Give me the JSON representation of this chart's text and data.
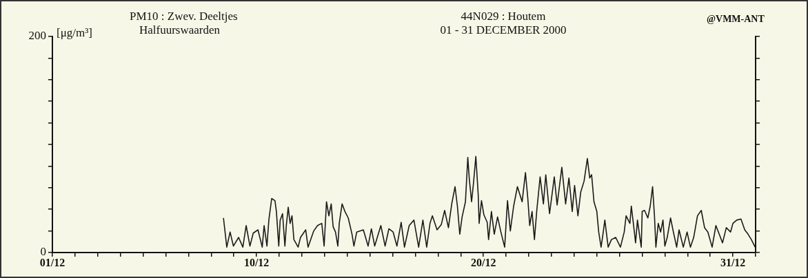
{
  "chart_data": {
    "type": "line",
    "title": "PM10 : Zwev. Deeltjes",
    "subtitle": "Halfuurswaarden",
    "ylabel": "[μg/m³]",
    "annotations": [
      "44N029 : Houtem",
      "01 - 31 DECEMBER 2000",
      "@VMM-ANT"
    ],
    "color": "#1a1a1a",
    "x": [
      "2000-12-08T13:00",
      "2000-12-08T16:30",
      "2000-12-08T20:00",
      "2000-12-08T23:30",
      "2000-12-09T05:00",
      "2000-12-09T09:30",
      "2000-12-09T13:00",
      "2000-12-09T17:00",
      "2000-12-09T20:30",
      "2000-12-10T01:30",
      "2000-12-10T06:00",
      "2000-12-10T08:00",
      "2000-12-10T11:00",
      "2000-12-10T13:00",
      "2000-12-10T16:00",
      "2000-12-10T19:30",
      "2000-12-10T21:00",
      "2000-12-10T23:30",
      "2000-12-11T01:00",
      "2000-12-11T03:30",
      "2000-12-11T06:00",
      "2000-12-11T07:30",
      "2000-12-11T09:30",
      "2000-12-11T11:30",
      "2000-12-11T13:30",
      "2000-12-11T15:30",
      "2000-12-11T20:00",
      "2000-12-11T22:30",
      "2000-12-12T04:00",
      "2000-12-12T06:30",
      "2000-12-12T12:30",
      "2000-12-12T16:30",
      "2000-12-12T21:00",
      "2000-12-12T23:30",
      "2000-12-13T02:00",
      "2000-12-13T04:30",
      "2000-12-13T07:00",
      "2000-12-13T09:00",
      "2000-12-13T11:30",
      "2000-12-13T14:00",
      "2000-12-13T15:30",
      "2000-12-13T18:30",
      "2000-12-13T21:30",
      "2000-12-14T01:00",
      "2000-12-14T05:00",
      "2000-12-14T07:00",
      "2000-12-14T10:00",
      "2000-12-14T17:00",
      "2000-12-14T22:00",
      "2000-12-15T01:30",
      "2000-12-15T05:00",
      "2000-12-15T11:30",
      "2000-12-15T16:00",
      "2000-12-15T20:00",
      "2000-12-16T00:30",
      "2000-12-16T04:30",
      "2000-12-16T09:00",
      "2000-12-16T12:30",
      "2000-12-16T17:30",
      "2000-12-16T22:30",
      "2000-12-17T03:30",
      "2000-12-17T08:00",
      "2000-12-17T12:00",
      "2000-12-17T15:30",
      "2000-12-17T18:00",
      "2000-12-17T23:00",
      "2000-12-18T03:30",
      "2000-12-18T07:00",
      "2000-12-18T11:00",
      "2000-12-18T14:30",
      "2000-12-18T18:00",
      "2000-12-18T20:30",
      "2000-12-18T23:00",
      "2000-12-19T01:30",
      "2000-12-19T05:00",
      "2000-12-19T07:30",
      "2000-12-19T09:00",
      "2000-12-19T11:30",
      "2000-12-19T13:30",
      "2000-12-19T16:00",
      "2000-12-19T18:30",
      "2000-12-19T19:30",
      "2000-12-19T22:00",
      "2000-12-20T00:30",
      "2000-12-20T04:00",
      "2000-12-20T05:30",
      "2000-12-20T08:30",
      "2000-12-20T11:30",
      "2000-12-20T15:00",
      "2000-12-20T18:30",
      "2000-12-20T22:30",
      "2000-12-21T01:30",
      "2000-12-21T04:30",
      "2000-12-21T08:00",
      "2000-12-21T12:00",
      "2000-12-21T17:00",
      "2000-12-21T20:30",
      "2000-12-21T23:00",
      "2000-12-22T01:00",
      "2000-12-22T03:30",
      "2000-12-22T06:00",
      "2000-12-22T08:30",
      "2000-12-22T12:00",
      "2000-12-22T15:30",
      "2000-12-22T18:00",
      "2000-12-22T22:00",
      "2000-12-23T03:00",
      "2000-12-23T06:00",
      "2000-12-23T11:00",
      "2000-12-23T15:00",
      "2000-12-23T18:30",
      "2000-12-23T22:00",
      "2000-12-24T00:30",
      "2000-12-24T04:00",
      "2000-12-24T07:00",
      "2000-12-24T10:30",
      "2000-12-24T14:00",
      "2000-12-24T16:30",
      "2000-12-24T18:30",
      "2000-12-24T21:00",
      "2000-12-25T00:00",
      "2000-12-25T02:00",
      "2000-12-25T04:30",
      "2000-12-25T06:30",
      "2000-12-25T08:30",
      "2000-12-25T12:00",
      "2000-12-25T15:30",
      "2000-12-25T20:00",
      "2000-12-26T01:00",
      "2000-12-26T05:00",
      "2000-12-26T07:00",
      "2000-12-26T11:00",
      "2000-12-26T12:30",
      "2000-12-26T16:00",
      "2000-12-26T17:00",
      "2000-12-26T19:00",
      "2000-12-26T23:00",
      "2000-12-27T00:00",
      "2000-12-27T02:30",
      "2000-12-27T06:00",
      "2000-12-27T08:30",
      "2000-12-27T11:00",
      "2000-12-27T13:00",
      "2000-12-27T14:30",
      "2000-12-27T17:00",
      "2000-12-27T19:30",
      "2000-12-27T22:00",
      "2000-12-28T00:00",
      "2000-12-28T02:30",
      "2000-12-28T06:00",
      "2000-12-28T09:00",
      "2000-12-28T12:30",
      "2000-12-28T15:00",
      "2000-12-28T19:30",
      "2000-12-28T23:30",
      "2000-12-29T03:00",
      "2000-12-29T06:30",
      "2000-12-29T10:30",
      "2000-12-29T14:30",
      "2000-12-29T18:00",
      "2000-12-29T21:30",
      "2000-12-30T02:00",
      "2000-12-30T06:00",
      "2000-12-30T09:30",
      "2000-12-30T13:00",
      "2000-12-30T17:00",
      "2000-12-30T21:30",
      "2000-12-31T00:00",
      "2000-12-31T04:00",
      "2000-12-31T08:30",
      "2000-12-31T12:30",
      "2000-12-31T16:00",
      "2000-12-31T19:30",
      "2000-12-31T23:30"
    ],
    "values": [
      32,
      5,
      19,
      6,
      14,
      5,
      25,
      6,
      18,
      21,
      5,
      25,
      6,
      30,
      50,
      48,
      38,
      6,
      30,
      36,
      6,
      25,
      42,
      27,
      34,
      12,
      5,
      14,
      21,
      5,
      20,
      25,
      27,
      6,
      47,
      34,
      45,
      24,
      19,
      6,
      27,
      45,
      38,
      32,
      17,
      6,
      19,
      21,
      6,
      22,
      6,
      25,
      6,
      22,
      19,
      6,
      28,
      5,
      25,
      30,
      5,
      30,
      5,
      27,
      34,
      21,
      26,
      39,
      23,
      45,
      61,
      43,
      17,
      33,
      47,
      88,
      69,
      47,
      64,
      89,
      54,
      27,
      48,
      35,
      28,
      12,
      38,
      17,
      33,
      19,
      5,
      48,
      20,
      43,
      61,
      47,
      74,
      50,
      25,
      38,
      12,
      39,
      70,
      45,
      72,
      36,
      70,
      44,
      79,
      45,
      69,
      38,
      62,
      34,
      56,
      66,
      87,
      69,
      72,
      47,
      38,
      19,
      5,
      17,
      30,
      5,
      12,
      14,
      5,
      19,
      34,
      27,
      43,
      17,
      9,
      30,
      5,
      38,
      39,
      32,
      43,
      61,
      34,
      5,
      27,
      19,
      30,
      6,
      14,
      32,
      19,
      5,
      21,
      5,
      19,
      5,
      14,
      34,
      39,
      23,
      19,
      5,
      25,
      17,
      9,
      23,
      19,
      27,
      30,
      31,
      21,
      17,
      12,
      5
    ],
    "xlim": [
      "2000-12-01",
      "2001-01-01"
    ],
    "xticks": [
      {
        "value": "2000-12-01",
        "label": "01/12"
      },
      {
        "value": "2000-12-02",
        "label": null
      },
      {
        "value": "2000-12-03",
        "label": null
      },
      {
        "value": "2000-12-04",
        "label": null
      },
      {
        "value": "2000-12-05",
        "label": null
      },
      {
        "value": "2000-12-06",
        "label": null
      },
      {
        "value": "2000-12-07",
        "label": null
      },
      {
        "value": "2000-12-08",
        "label": null
      },
      {
        "value": "2000-12-09",
        "label": null
      },
      {
        "value": "2000-12-10",
        "label": "10/12"
      },
      {
        "value": "2000-12-11",
        "label": null
      },
      {
        "value": "2000-12-12",
        "label": null
      },
      {
        "value": "2000-12-13",
        "label": null
      },
      {
        "value": "2000-12-14",
        "label": null
      },
      {
        "value": "2000-12-15",
        "label": null
      },
      {
        "value": "2000-12-16",
        "label": null
      },
      {
        "value": "2000-12-17",
        "label": null
      },
      {
        "value": "2000-12-18",
        "label": null
      },
      {
        "value": "2000-12-19",
        "label": null
      },
      {
        "value": "2000-12-20",
        "label": "20/12"
      },
      {
        "value": "2000-12-21",
        "label": null
      },
      {
        "value": "2000-12-22",
        "label": null
      },
      {
        "value": "2000-12-23",
        "label": null
      },
      {
        "value": "2000-12-24",
        "label": null
      },
      {
        "value": "2000-12-25",
        "label": null
      },
      {
        "value": "2000-12-26",
        "label": null
      },
      {
        "value": "2000-12-27",
        "label": null
      },
      {
        "value": "2000-12-28",
        "label": null
      },
      {
        "value": "2000-12-29",
        "label": null
      },
      {
        "value": "2000-12-30",
        "label": null
      },
      {
        "value": "2000-12-31",
        "label": "31/12"
      },
      {
        "value": "2001-01-01",
        "label": null
      }
    ],
    "ylim": [
      0,
      200
    ],
    "yticks": [
      0,
      {
        "value": 20,
        "label": null
      },
      {
        "value": 40,
        "label": null
      },
      {
        "value": 60,
        "label": null
      },
      {
        "value": 80,
        "label": null
      },
      {
        "value": 100,
        "label": null
      },
      {
        "value": 120,
        "label": null
      },
      {
        "value": 140,
        "label": null
      },
      {
        "value": 160,
        "label": null
      },
      {
        "value": 180,
        "label": null
      },
      200
    ]
  }
}
